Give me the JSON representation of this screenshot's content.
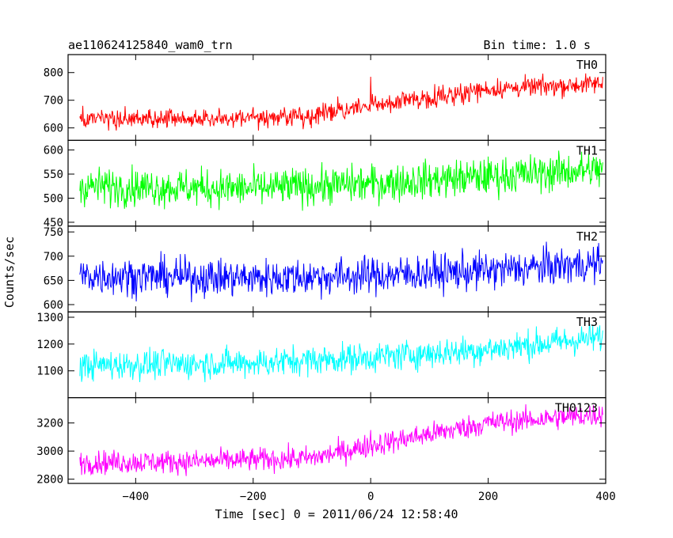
{
  "header": {
    "title": "ae110624125840_wam0_trn",
    "bin_time": "Bin time: 1.0 s"
  },
  "chart_data": {
    "type": "line",
    "title": "ae110624125840_wam0_trn",
    "xlabel": "Time [sec] 0 = 2011/06/24 12:58:40",
    "ylabel": "Counts/sec",
    "xlim": [
      -515,
      400
    ],
    "x_ticks": [
      -400,
      -200,
      0,
      200,
      400
    ],
    "x_tick_labels": [
      "−400",
      "−200",
      "0",
      "200",
      "400"
    ],
    "x_range": [
      -495,
      395
    ],
    "grid": false,
    "series": [
      {
        "name": "TH0",
        "color": "#ff0000",
        "ylim": [
          555,
          865
        ],
        "y_ticks": [
          600,
          700,
          800
        ],
        "trend": [
          [
            -495,
            630
          ],
          [
            -300,
            632
          ],
          [
            -100,
            645
          ],
          [
            0,
            680
          ],
          [
            100,
            710
          ],
          [
            200,
            740
          ],
          [
            395,
            760
          ]
        ],
        "noise": 32,
        "spikes": [
          [
            0,
            785
          ]
        ]
      },
      {
        "name": "TH1",
        "color": "#00ff00",
        "ylim": [
          442,
          620
        ],
        "y_ticks": [
          450,
          500,
          550,
          600
        ],
        "trend": [
          [
            -495,
            525
          ],
          [
            -200,
            520
          ],
          [
            0,
            530
          ],
          [
            200,
            545
          ],
          [
            395,
            560
          ]
        ],
        "noise": 35,
        "spikes": []
      },
      {
        "name": "TH2",
        "color": "#0000ff",
        "ylim": [
          585,
          762
        ],
        "y_ticks": [
          600,
          650,
          700,
          750
        ],
        "trend": [
          [
            -495,
            660
          ],
          [
            -200,
            655
          ],
          [
            0,
            660
          ],
          [
            200,
            670
          ],
          [
            395,
            685
          ]
        ],
        "noise": 35,
        "spikes": []
      },
      {
        "name": "TH3",
        "color": "#00ffff",
        "ylim": [
          1000,
          1320
        ],
        "y_ticks": [
          1100,
          1200,
          1300
        ],
        "trend": [
          [
            -495,
            1120
          ],
          [
            -200,
            1130
          ],
          [
            0,
            1150
          ],
          [
            200,
            1180
          ],
          [
            395,
            1225
          ]
        ],
        "noise": 50,
        "spikes": []
      },
      {
        "name": "TH0123",
        "color": "#ff00ff",
        "ylim": [
          2770,
          3380
        ],
        "y_ticks": [
          2800,
          3000,
          3200
        ],
        "trend": [
          [
            -495,
            2920
          ],
          [
            -300,
            2925
          ],
          [
            -100,
            2950
          ],
          [
            0,
            3040
          ],
          [
            100,
            3120
          ],
          [
            200,
            3200
          ],
          [
            395,
            3260
          ]
        ],
        "noise": 75,
        "spikes": [
          [
            0,
            3150
          ]
        ]
      }
    ]
  }
}
